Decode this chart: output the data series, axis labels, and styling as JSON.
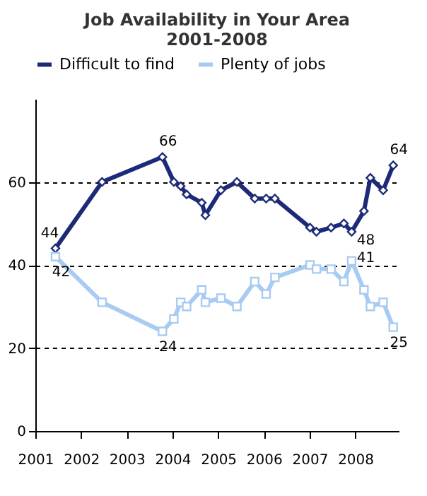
{
  "chart_data": {
    "type": "line",
    "title": [
      "Job Availability in Your Area",
      "2001-2008"
    ],
    "x": [
      2001.44,
      2002.46,
      2003.78,
      2004.03,
      2004.18,
      2004.31,
      2004.64,
      2004.72,
      2005.06,
      2005.41,
      2005.8,
      2006.05,
      2006.24,
      2007.01,
      2007.15,
      2007.47,
      2007.75,
      2007.92,
      2008.19,
      2008.33,
      2008.61,
      2008.83
    ],
    "series": [
      {
        "name": "Difficult to find",
        "color": "#1c2a78",
        "marker": "diamond",
        "values": [
          44,
          60,
          66,
          60,
          59,
          57,
          55,
          52,
          58,
          60,
          56,
          56,
          56,
          49,
          48,
          49,
          50,
          48,
          53,
          61,
          58,
          64
        ]
      },
      {
        "name": "Plenty of jobs",
        "color": "#a8cbf2",
        "marker": "square",
        "values": [
          42,
          31,
          24,
          27,
          31,
          30,
          34,
          31,
          32,
          30,
          36,
          33,
          37,
          40,
          39,
          39,
          36,
          41,
          34,
          30,
          31,
          25
        ]
      }
    ],
    "xlim": [
      2001,
      2008.95
    ],
    "xticks": [
      2001,
      2002,
      2003,
      2004,
      2005,
      2006,
      2007,
      2008
    ],
    "ylim": [
      0,
      80
    ],
    "yticks": [
      0,
      20,
      40,
      60
    ],
    "grid": "y",
    "line_style": "solid",
    "legend": "top",
    "annotations": [
      {
        "text": "44",
        "x": 2001.44,
        "y": 44
      },
      {
        "text": "66",
        "x": 2003.78,
        "y": 66
      },
      {
        "text": "48",
        "x": 2007.92,
        "y": 48
      },
      {
        "text": "64",
        "x": 2008.83,
        "y": 64
      },
      {
        "text": "42",
        "x": 2001.44,
        "y": 42
      },
      {
        "text": "24",
        "x": 2003.78,
        "y": 24
      },
      {
        "text": "41",
        "x": 2007.92,
        "y": 41
      },
      {
        "text": "25",
        "x": 2008.83,
        "y": 25
      }
    ]
  }
}
